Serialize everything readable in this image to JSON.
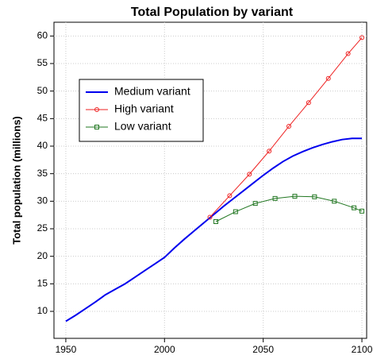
{
  "chart_data": {
    "type": "line",
    "title": "Total Population by variant",
    "y_label": "Total population (millions)",
    "xlim": [
      1944,
      2102.4
    ],
    "ylim": [
      5.1,
      62.5
    ],
    "xticks": [
      1950,
      2000,
      2050,
      2100
    ],
    "yticks": [
      10,
      15,
      20,
      25,
      30,
      35,
      40,
      45,
      50,
      55,
      60
    ],
    "grid": true,
    "legend": "upper left",
    "series": [
      {
        "name": "Medium variant",
        "color": "#0000ee",
        "marker": "none",
        "x": [
          1950,
          1955,
          1960,
          1965,
          1970,
          1975,
          1980,
          1985,
          1990,
          1995,
          2000,
          2005,
          2010,
          2015,
          2020,
          2025,
          2030,
          2035,
          2040,
          2045,
          2050,
          2055,
          2060,
          2065,
          2070,
          2075,
          2080,
          2085,
          2090,
          2095,
          2100
        ],
        "values": [
          8.2,
          9.3,
          10.5,
          11.7,
          13.0,
          14.0,
          15.0,
          16.2,
          17.4,
          18.6,
          19.8,
          21.5,
          23.1,
          24.6,
          26.1,
          27.6,
          29.1,
          30.5,
          31.9,
          33.3,
          34.7,
          36.0,
          37.2,
          38.2,
          39.0,
          39.7,
          40.3,
          40.8,
          41.2,
          41.4,
          41.4
        ]
      },
      {
        "name": "High variant",
        "color": "#ee2222",
        "marker": "circle",
        "x": [
          2023,
          2033,
          2043,
          2053,
          2063,
          2073,
          2083,
          2093,
          2100
        ],
        "values": [
          27.1,
          31.0,
          34.9,
          39.1,
          43.6,
          47.9,
          52.3,
          56.8,
          59.7
        ]
      },
      {
        "name": "Low variant",
        "color": "#227722",
        "marker": "square",
        "x": [
          2026,
          2036,
          2046,
          2056,
          2066,
          2076,
          2086,
          2096,
          2100
        ],
        "values": [
          26.3,
          28.1,
          29.6,
          30.5,
          30.9,
          30.8,
          30.0,
          28.8,
          28.2
        ]
      }
    ]
  }
}
